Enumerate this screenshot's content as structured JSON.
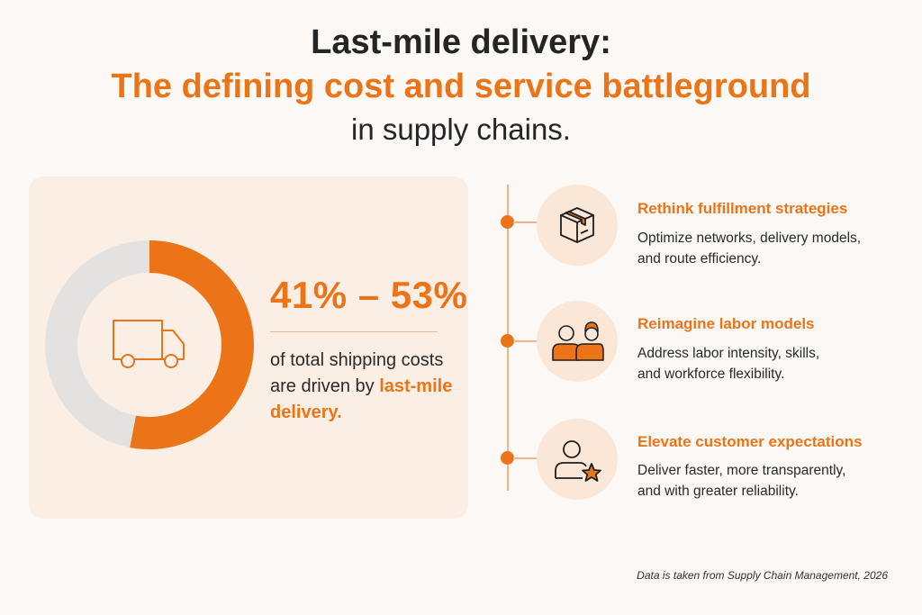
{
  "header": {
    "line1": "Last-mile delivery:",
    "line2": "The defining cost and service battleground",
    "line3": "in supply chains."
  },
  "stat": {
    "range": "41% – 53%",
    "share_low": 0.41,
    "share_high": 0.53,
    "desc_part1": "of total shipping costs are driven by",
    "desc_highlight": "last-mile delivery.",
    "icon": "delivery-truck-icon"
  },
  "colors": {
    "accent": "#ec7418",
    "donut_track": "#e4e2e0",
    "text": "#252525"
  },
  "items": [
    {
      "title": "Rethink fulfillment strategies",
      "desc_line1": "Optimize networks, delivery models,",
      "desc_line2": "and route efficiency.",
      "icon": "package-box-icon"
    },
    {
      "title": "Reimagine labor models",
      "desc_line1": "Address labor intensity, skills,",
      "desc_line2": "and workforce flexibility.",
      "icon": "workers-icon"
    },
    {
      "title": "Elevate customer expectations",
      "desc_line1": "Deliver faster, more transparently,",
      "desc_line2": "and with greater reliability.",
      "icon": "customer-star-icon"
    }
  ],
  "footnote": "Data is taken from Supply Chain Management, 2026"
}
